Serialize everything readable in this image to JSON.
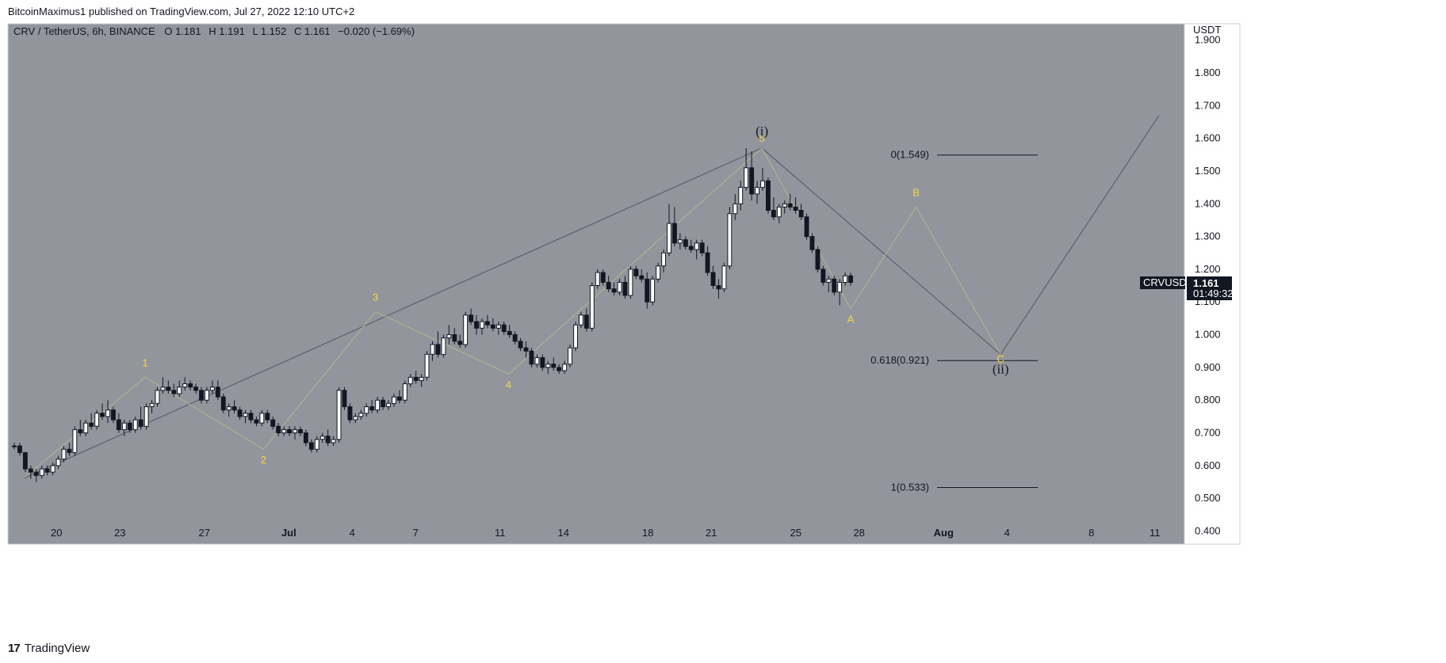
{
  "header": {
    "publisher": "BitcoinMaximus1 published on TradingView.com, Jul 27, 2022 12:10 UTC+2"
  },
  "footer": {
    "brand": "TradingView"
  },
  "colors": {
    "background": "#93959d",
    "bull": "#ffffff",
    "bear": "#131722",
    "wave": "#f6d742",
    "trend": "#5d606b"
  },
  "chart_data": {
    "type": "candlestick",
    "symbol_line": "CRV / TetherUS, 6h, BINANCE",
    "ohlc": {
      "o_label": "O",
      "o": "1.181",
      "h_label": "H",
      "h": "1.191",
      "l_label": "L",
      "l": "1.152",
      "c_label": "C",
      "c": "1.161",
      "change": "−0.020 (−1.69%)"
    },
    "currency": "USDT",
    "y_ticks": [
      "1.900",
      "1.800",
      "1.700",
      "1.600",
      "1.500",
      "1.400",
      "1.300",
      "1.200",
      "1.100",
      "1.000",
      "0.900",
      "0.800",
      "0.700",
      "0.600",
      "0.500",
      "0.400"
    ],
    "ylim": [
      0.36,
      1.95
    ],
    "x_ticks": [
      {
        "label": "20",
        "day": 20
      },
      {
        "label": "23",
        "day": 23
      },
      {
        "label": "27",
        "day": 27
      },
      {
        "label": "Jul",
        "day": 31
      },
      {
        "label": "4",
        "day": 34
      },
      {
        "label": "7",
        "day": 37
      },
      {
        "label": "11",
        "day": 41
      },
      {
        "label": "14",
        "day": 44
      },
      {
        "label": "18",
        "day": 48
      },
      {
        "label": "21",
        "day": 51
      },
      {
        "label": "25",
        "day": 55
      },
      {
        "label": "28",
        "day": 58
      },
      {
        "label": "Aug",
        "day": 62
      },
      {
        "label": "4",
        "day": 65
      },
      {
        "label": "8",
        "day": 69
      },
      {
        "label": "11",
        "day": 72
      }
    ],
    "xlim": [
      17.7,
      73.4
    ],
    "candles": [
      [
        0.66,
        0.67,
        0.65,
        0.66
      ],
      [
        0.66,
        0.67,
        0.63,
        0.64
      ],
      [
        0.64,
        0.64,
        0.58,
        0.59
      ],
      [
        0.59,
        0.6,
        0.56,
        0.58
      ],
      [
        0.58,
        0.59,
        0.55,
        0.57
      ],
      [
        0.57,
        0.6,
        0.56,
        0.59
      ],
      [
        0.59,
        0.6,
        0.57,
        0.58
      ],
      [
        0.58,
        0.61,
        0.57,
        0.6
      ],
      [
        0.6,
        0.63,
        0.59,
        0.62
      ],
      [
        0.62,
        0.66,
        0.61,
        0.65
      ],
      [
        0.65,
        0.67,
        0.63,
        0.64
      ],
      [
        0.64,
        0.72,
        0.63,
        0.71
      ],
      [
        0.71,
        0.74,
        0.69,
        0.7
      ],
      [
        0.7,
        0.74,
        0.69,
        0.73
      ],
      [
        0.73,
        0.76,
        0.71,
        0.72
      ],
      [
        0.72,
        0.77,
        0.71,
        0.76
      ],
      [
        0.76,
        0.79,
        0.74,
        0.75
      ],
      [
        0.75,
        0.8,
        0.73,
        0.77
      ],
      [
        0.77,
        0.78,
        0.73,
        0.74
      ],
      [
        0.74,
        0.76,
        0.7,
        0.71
      ],
      [
        0.71,
        0.74,
        0.69,
        0.73
      ],
      [
        0.73,
        0.74,
        0.7,
        0.71
      ],
      [
        0.71,
        0.75,
        0.7,
        0.74
      ],
      [
        0.74,
        0.78,
        0.71,
        0.72
      ],
      [
        0.72,
        0.79,
        0.71,
        0.78
      ],
      [
        0.78,
        0.8,
        0.76,
        0.79
      ],
      [
        0.79,
        0.84,
        0.78,
        0.83
      ],
      [
        0.83,
        0.87,
        0.82,
        0.84
      ],
      [
        0.84,
        0.86,
        0.82,
        0.83
      ],
      [
        0.83,
        0.85,
        0.81,
        0.82
      ],
      [
        0.82,
        0.86,
        0.81,
        0.84
      ],
      [
        0.84,
        0.87,
        0.83,
        0.85
      ],
      [
        0.85,
        0.86,
        0.83,
        0.84
      ],
      [
        0.84,
        0.85,
        0.82,
        0.83
      ],
      [
        0.83,
        0.84,
        0.79,
        0.8
      ],
      [
        0.8,
        0.84,
        0.79,
        0.83
      ],
      [
        0.83,
        0.86,
        0.82,
        0.84
      ],
      [
        0.84,
        0.86,
        0.8,
        0.81
      ],
      [
        0.81,
        0.82,
        0.76,
        0.77
      ],
      [
        0.77,
        0.79,
        0.75,
        0.78
      ],
      [
        0.78,
        0.8,
        0.76,
        0.77
      ],
      [
        0.77,
        0.78,
        0.74,
        0.75
      ],
      [
        0.75,
        0.77,
        0.73,
        0.76
      ],
      [
        0.76,
        0.77,
        0.73,
        0.74
      ],
      [
        0.74,
        0.75,
        0.72,
        0.73
      ],
      [
        0.73,
        0.77,
        0.72,
        0.76
      ],
      [
        0.76,
        0.77,
        0.73,
        0.74
      ],
      [
        0.74,
        0.75,
        0.71,
        0.72
      ],
      [
        0.72,
        0.73,
        0.69,
        0.7
      ],
      [
        0.7,
        0.72,
        0.69,
        0.71
      ],
      [
        0.71,
        0.72,
        0.69,
        0.7
      ],
      [
        0.7,
        0.72,
        0.68,
        0.71
      ],
      [
        0.71,
        0.72,
        0.69,
        0.7
      ],
      [
        0.7,
        0.71,
        0.66,
        0.67
      ],
      [
        0.67,
        0.68,
        0.64,
        0.65
      ],
      [
        0.65,
        0.69,
        0.64,
        0.68
      ],
      [
        0.68,
        0.7,
        0.67,
        0.69
      ],
      [
        0.69,
        0.71,
        0.66,
        0.67
      ],
      [
        0.67,
        0.69,
        0.66,
        0.68
      ],
      [
        0.68,
        0.84,
        0.67,
        0.83
      ],
      [
        0.83,
        0.84,
        0.77,
        0.78
      ],
      [
        0.78,
        0.79,
        0.73,
        0.74
      ],
      [
        0.74,
        0.76,
        0.73,
        0.75
      ],
      [
        0.75,
        0.77,
        0.74,
        0.76
      ],
      [
        0.76,
        0.79,
        0.75,
        0.78
      ],
      [
        0.78,
        0.8,
        0.76,
        0.77
      ],
      [
        0.77,
        0.81,
        0.76,
        0.8
      ],
      [
        0.8,
        0.81,
        0.77,
        0.78
      ],
      [
        0.78,
        0.8,
        0.77,
        0.79
      ],
      [
        0.79,
        0.82,
        0.78,
        0.81
      ],
      [
        0.81,
        0.83,
        0.79,
        0.8
      ],
      [
        0.8,
        0.86,
        0.79,
        0.85
      ],
      [
        0.85,
        0.88,
        0.84,
        0.87
      ],
      [
        0.87,
        0.89,
        0.85,
        0.86
      ],
      [
        0.86,
        0.88,
        0.84,
        0.87
      ],
      [
        0.87,
        0.95,
        0.86,
        0.94
      ],
      [
        0.94,
        0.98,
        0.92,
        0.97
      ],
      [
        0.97,
        1.01,
        0.93,
        0.94
      ],
      [
        0.94,
        1.0,
        0.93,
        0.99
      ],
      [
        0.99,
        1.03,
        0.97,
        1.0
      ],
      [
        1.0,
        1.02,
        0.97,
        0.98
      ],
      [
        0.98,
        1.0,
        0.96,
        0.97
      ],
      [
        0.97,
        1.07,
        0.96,
        1.06
      ],
      [
        1.06,
        1.08,
        1.03,
        1.04
      ],
      [
        1.04,
        1.06,
        1.0,
        1.02
      ],
      [
        1.02,
        1.05,
        1.0,
        1.04
      ],
      [
        1.04,
        1.06,
        1.02,
        1.03
      ],
      [
        1.03,
        1.05,
        1.01,
        1.02
      ],
      [
        1.02,
        1.04,
        1.0,
        1.03
      ],
      [
        1.03,
        1.04,
        1.0,
        1.01
      ],
      [
        1.01,
        1.03,
        0.99,
        1.0
      ],
      [
        1.0,
        1.01,
        0.97,
        0.98
      ],
      [
        0.98,
        0.99,
        0.95,
        0.96
      ],
      [
        0.96,
        0.98,
        0.93,
        0.95
      ],
      [
        0.95,
        0.96,
        0.9,
        0.91
      ],
      [
        0.91,
        0.94,
        0.9,
        0.93
      ],
      [
        0.93,
        0.94,
        0.89,
        0.9
      ],
      [
        0.9,
        0.92,
        0.88,
        0.91
      ],
      [
        0.91,
        0.93,
        0.89,
        0.9
      ],
      [
        0.9,
        0.91,
        0.88,
        0.89
      ],
      [
        0.89,
        0.92,
        0.88,
        0.91
      ],
      [
        0.91,
        0.97,
        0.9,
        0.96
      ],
      [
        0.96,
        1.04,
        0.95,
        1.03
      ],
      [
        1.03,
        1.07,
        1.02,
        1.06
      ],
      [
        1.06,
        1.08,
        1.01,
        1.02
      ],
      [
        1.02,
        1.16,
        1.01,
        1.15
      ],
      [
        1.15,
        1.2,
        1.14,
        1.19
      ],
      [
        1.19,
        1.2,
        1.15,
        1.16
      ],
      [
        1.16,
        1.18,
        1.13,
        1.14
      ],
      [
        1.14,
        1.16,
        1.12,
        1.13
      ],
      [
        1.13,
        1.17,
        1.12,
        1.16
      ],
      [
        1.16,
        1.18,
        1.11,
        1.12
      ],
      [
        1.12,
        1.21,
        1.11,
        1.2
      ],
      [
        1.2,
        1.21,
        1.17,
        1.18
      ],
      [
        1.18,
        1.2,
        1.16,
        1.17
      ],
      [
        1.17,
        1.19,
        1.08,
        1.1
      ],
      [
        1.1,
        1.18,
        1.09,
        1.17
      ],
      [
        1.17,
        1.22,
        1.16,
        1.21
      ],
      [
        1.21,
        1.26,
        1.19,
        1.25
      ],
      [
        1.25,
        1.4,
        1.24,
        1.34
      ],
      [
        1.34,
        1.39,
        1.27,
        1.28
      ],
      [
        1.28,
        1.31,
        1.26,
        1.29
      ],
      [
        1.29,
        1.3,
        1.26,
        1.27
      ],
      [
        1.27,
        1.29,
        1.25,
        1.26
      ],
      [
        1.26,
        1.29,
        1.23,
        1.28
      ],
      [
        1.28,
        1.29,
        1.24,
        1.25
      ],
      [
        1.25,
        1.27,
        1.18,
        1.19
      ],
      [
        1.19,
        1.21,
        1.14,
        1.15
      ],
      [
        1.15,
        1.17,
        1.11,
        1.14
      ],
      [
        1.14,
        1.22,
        1.13,
        1.21
      ],
      [
        1.21,
        1.39,
        1.2,
        1.37
      ],
      [
        1.37,
        1.43,
        1.35,
        1.4
      ],
      [
        1.4,
        1.47,
        1.38,
        1.45
      ],
      [
        1.45,
        1.57,
        1.44,
        1.51
      ],
      [
        1.51,
        1.56,
        1.41,
        1.43
      ],
      [
        1.43,
        1.47,
        1.4,
        1.45
      ],
      [
        1.45,
        1.51,
        1.44,
        1.47
      ],
      [
        1.47,
        1.48,
        1.37,
        1.38
      ],
      [
        1.38,
        1.42,
        1.35,
        1.36
      ],
      [
        1.36,
        1.4,
        1.34,
        1.39
      ],
      [
        1.39,
        1.41,
        1.37,
        1.4
      ],
      [
        1.4,
        1.43,
        1.38,
        1.39
      ],
      [
        1.39,
        1.42,
        1.37,
        1.38
      ],
      [
        1.38,
        1.4,
        1.35,
        1.36
      ],
      [
        1.36,
        1.37,
        1.29,
        1.3
      ],
      [
        1.3,
        1.31,
        1.25,
        1.26
      ],
      [
        1.26,
        1.27,
        1.19,
        1.2
      ],
      [
        1.2,
        1.21,
        1.15,
        1.16
      ],
      [
        1.16,
        1.18,
        1.13,
        1.17
      ],
      [
        1.17,
        1.18,
        1.12,
        1.13
      ],
      [
        1.13,
        1.17,
        1.09,
        1.16
      ],
      [
        1.16,
        1.19,
        1.15,
        1.18
      ],
      [
        1.18,
        1.19,
        1.15,
        1.16
      ]
    ],
    "wave_minor": {
      "points": [
        [
          18.4,
          0.56
        ],
        [
          24.2,
          0.87
        ],
        [
          29.8,
          0.65
        ],
        [
          35.1,
          1.07
        ],
        [
          41.4,
          0.88
        ],
        [
          53.4,
          1.57
        ],
        [
          57.6,
          1.08
        ],
        [
          60.7,
          1.39
        ],
        [
          64.7,
          0.94
        ]
      ],
      "labels": [
        {
          "text": "1",
          "day": 24.2,
          "price": 0.87
        },
        {
          "text": "2",
          "day": 29.8,
          "price": 0.65
        },
        {
          "text": "3",
          "day": 35.1,
          "price": 1.07
        },
        {
          "text": "4",
          "day": 41.4,
          "price": 0.88
        },
        {
          "text": "5",
          "day": 53.4,
          "price": 1.57
        },
        {
          "text": "A",
          "day": 57.6,
          "price": 1.08
        },
        {
          "text": "B",
          "day": 60.7,
          "price": 1.39
        },
        {
          "text": "C",
          "day": 64.7,
          "price": 0.94
        }
      ]
    },
    "wave_major": {
      "points": [
        [
          18.4,
          0.56
        ],
        [
          53.4,
          1.57
        ],
        [
          64.7,
          0.94
        ],
        [
          72.2,
          1.67
        ]
      ],
      "labels": [
        {
          "text": "(i)",
          "day": 53.4,
          "price": 1.57
        },
        {
          "text": "(ii)",
          "day": 64.7,
          "price": 0.94
        }
      ]
    },
    "fib_levels": [
      {
        "label": "0(1.549)",
        "price": 1.549
      },
      {
        "label": "0.618(0.921)",
        "price": 0.921
      },
      {
        "label": "1(0.533)",
        "price": 0.533
      }
    ],
    "fib_range_days": [
      64.9,
      65.0
    ],
    "last_price": {
      "symbol": "CRVUSDT",
      "price": "1.161",
      "countdown": "01:49:32",
      "value": 1.161
    }
  }
}
